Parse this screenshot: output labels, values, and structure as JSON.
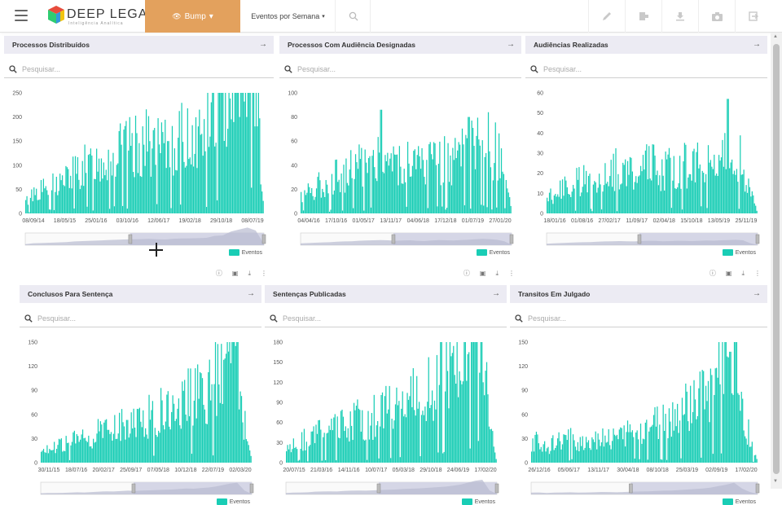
{
  "app": {
    "logo_text": "DEEP LEGAL",
    "logo_sub": "Inteligência Analítica"
  },
  "toolbar": {
    "bump_label": "Bump",
    "period_label": "Eventos por Semana",
    "icons": [
      "pencil-icon",
      "exit-door-icon",
      "download-icon",
      "camera-icon",
      "logout-icon"
    ]
  },
  "colors": {
    "bar": "#19cdb5",
    "header_bg": "#ecebf3",
    "accent": "#e3a15d"
  },
  "search_placeholder": "Pesquisar...",
  "legend_label": "Eventos",
  "panels": [
    {
      "title": "Processos Distribuídos",
      "chart_data": {
        "type": "bar",
        "series": [
          {
            "name": "Eventos"
          }
        ],
        "ylim": [
          0,
          250
        ],
        "yticks": [
          "250",
          "200",
          "150",
          "100",
          "50",
          "0"
        ],
        "xticks": [
          "08/09/14",
          "18/05/15",
          "25/01/16",
          "03/10/16",
          "12/06/17",
          "19/02/18",
          "29/10/18",
          "08/07/19"
        ],
        "profile": [
          10,
          20,
          22,
          25,
          28,
          32,
          38,
          42,
          45,
          48,
          52,
          55,
          58,
          60,
          62,
          65,
          60,
          58,
          66,
          68,
          70,
          72,
          75,
          95,
          100,
          140,
          160,
          180,
          150,
          10
        ],
        "spikes": [
          {
            "at": 0.6,
            "v": 150
          },
          {
            "at": 0.93,
            "v": 200
          }
        ]
      }
    },
    {
      "title": "Processos Com Audiência Designadas",
      "chart_data": {
        "type": "bar",
        "series": [
          {
            "name": "Eventos"
          }
        ],
        "ylim": [
          0,
          100
        ],
        "yticks": [
          "100",
          "80",
          "60",
          "40",
          "20",
          "0"
        ],
        "xticks": [
          "04/04/16",
          "17/10/16",
          "01/05/17",
          "13/11/17",
          "04/06/18",
          "17/12/18",
          "01/07/19",
          "27/01/20"
        ],
        "profile": [
          18,
          22,
          25,
          28,
          30,
          35,
          38,
          40,
          45,
          48,
          50,
          52,
          50,
          45,
          48,
          50,
          45,
          42,
          48,
          52,
          50,
          48,
          52,
          55,
          60,
          65,
          62,
          55,
          40,
          5
        ],
        "spikes": [
          {
            "at": 0.38,
            "v": 86
          },
          {
            "at": 0.8,
            "v": 80
          }
        ]
      }
    },
    {
      "title": "Audiências Realizadas",
      "chart_data": {
        "type": "bar",
        "series": [
          {
            "name": "Eventos"
          }
        ],
        "ylim": [
          0,
          60
        ],
        "yticks": [
          "60",
          "50",
          "40",
          "30",
          "20",
          "10",
          "0"
        ],
        "xticks": [
          "18/01/16",
          "01/08/16",
          "27/02/17",
          "11/09/17",
          "02/04/18",
          "15/10/18",
          "13/05/19",
          "25/11/19"
        ],
        "profile": [
          15,
          18,
          22,
          25,
          28,
          30,
          32,
          35,
          38,
          40,
          42,
          40,
          38,
          42,
          45,
          44,
          40,
          42,
          45,
          44,
          42,
          45,
          48,
          46,
          50,
          52,
          55,
          50,
          20,
          3
        ],
        "spikes": [
          {
            "at": 0.86,
            "v": 57
          }
        ]
      }
    },
    {
      "title": "Conclusos Para Sentença",
      "chart_data": {
        "type": "bar",
        "series": [
          {
            "name": "Eventos"
          }
        ],
        "ylim": [
          0,
          150
        ],
        "yticks": [
          "150",
          "120",
          "90",
          "60",
          "30",
          "0"
        ],
        "xticks": [
          "30/11/15",
          "18/07/16",
          "20/02/17",
          "25/09/17",
          "07/05/18",
          "10/12/18",
          "22/07/19",
          "02/03/20"
        ],
        "profile": [
          12,
          15,
          14,
          16,
          18,
          22,
          20,
          24,
          28,
          32,
          30,
          34,
          38,
          36,
          40,
          42,
          45,
          48,
          50,
          55,
          60,
          58,
          65,
          70,
          80,
          95,
          110,
          120,
          40,
          5
        ],
        "spikes": [
          {
            "at": 0.87,
            "v": 128
          }
        ]
      }
    },
    {
      "title": "Sentenças Publicadas",
      "chart_data": {
        "type": "bar",
        "series": [
          {
            "name": "Eventos"
          }
        ],
        "ylim": [
          0,
          180
        ],
        "yticks": [
          "180",
          "150",
          "120",
          "90",
          "60",
          "30",
          "0"
        ],
        "xticks": [
          "20/07/15",
          "21/03/16",
          "14/11/16",
          "10/07/17",
          "05/03/18",
          "29/10/18",
          "24/06/19",
          "17/02/20"
        ],
        "profile": [
          15,
          18,
          20,
          22,
          28,
          30,
          32,
          30,
          35,
          38,
          40,
          38,
          42,
          45,
          48,
          50,
          55,
          58,
          60,
          65,
          70,
          75,
          80,
          90,
          100,
          120,
          140,
          150,
          40,
          5
        ],
        "spikes": [
          {
            "at": 0.87,
            "v": 165
          }
        ]
      }
    },
    {
      "title": "Transitos Em Julgado",
      "chart_data": {
        "type": "bar",
        "series": [
          {
            "name": "Eventos"
          }
        ],
        "ylim": [
          0,
          150
        ],
        "yticks": [
          "150",
          "120",
          "90",
          "60",
          "30",
          "0"
        ],
        "xticks": [
          "26/12/16",
          "05/06/17",
          "13/11/17",
          "30/04/18",
          "08/10/18",
          "25/03/19",
          "02/09/19",
          "17/02/20"
        ],
        "profile": [
          18,
          20,
          15,
          18,
          20,
          22,
          18,
          20,
          22,
          25,
          24,
          22,
          25,
          28,
          30,
          32,
          35,
          38,
          40,
          45,
          50,
          55,
          60,
          70,
          85,
          100,
          120,
          60,
          25,
          5
        ],
        "spikes": [
          {
            "at": 0.88,
            "v": 138
          }
        ]
      }
    }
  ]
}
